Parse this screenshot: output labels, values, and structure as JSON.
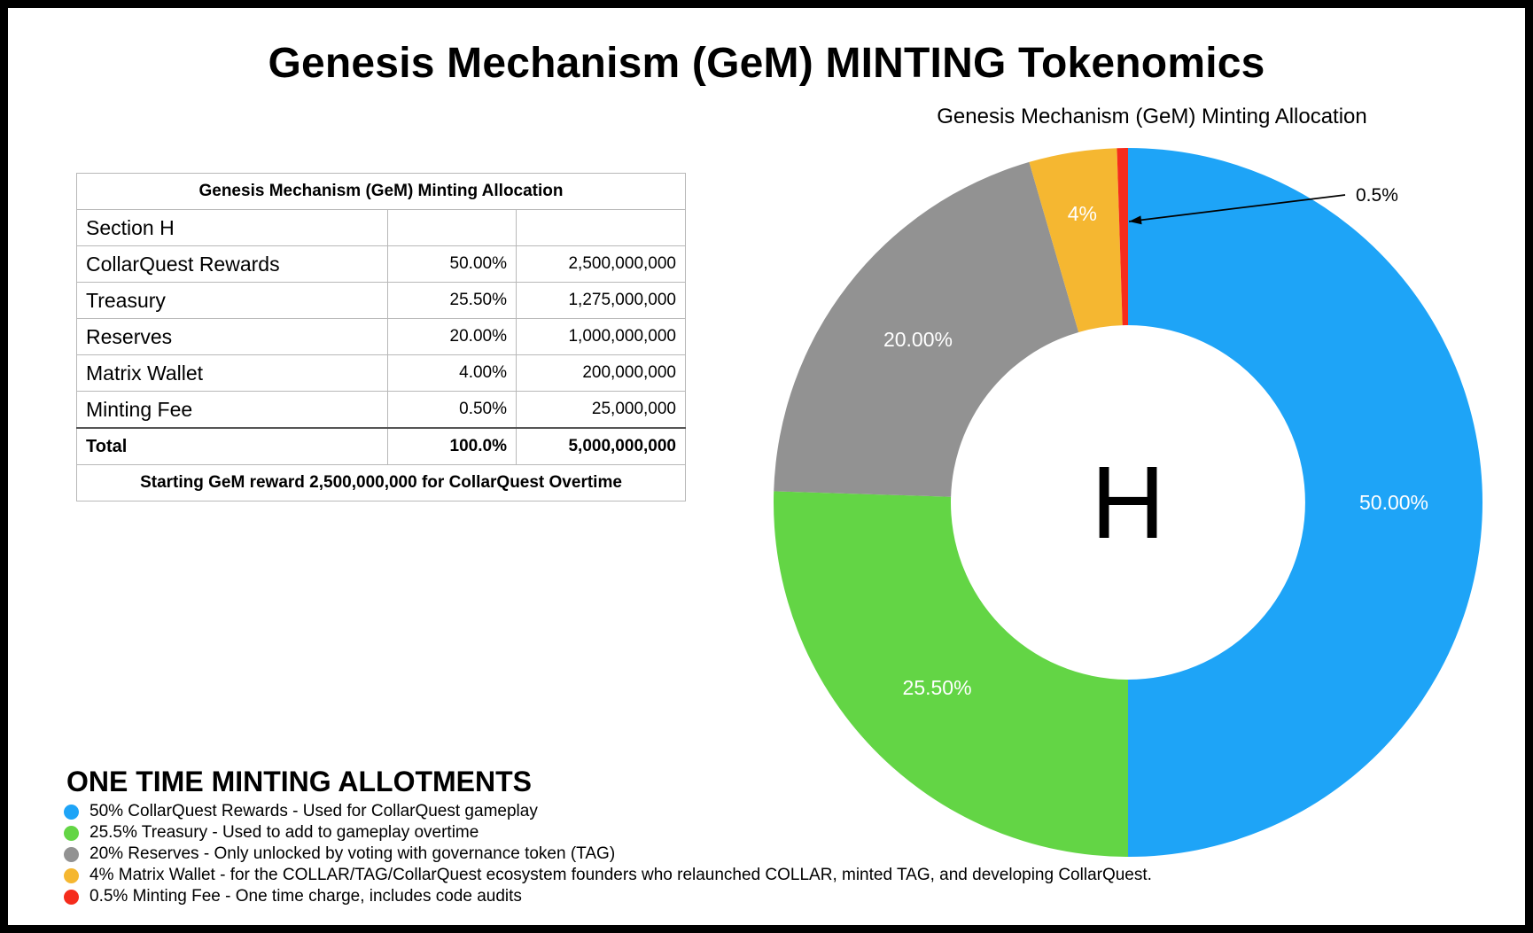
{
  "title": "Genesis Mechanism (GeM) MINTING Tokenomics",
  "table": {
    "caption": "Genesis Mechanism (GeM) Minting Allocation",
    "section_label": "Section H",
    "rows": [
      {
        "label": "CollarQuest Rewards",
        "percent": "50.00%",
        "amount": "2,500,000,000"
      },
      {
        "label": "Treasury",
        "percent": "25.50%",
        "amount": "1,275,000,000"
      },
      {
        "label": "Reserves",
        "percent": "20.00%",
        "amount": "1,000,000,000"
      },
      {
        "label": "Matrix Wallet",
        "percent": "4.00%",
        "amount": "200,000,000"
      },
      {
        "label": "Minting Fee",
        "percent": "0.50%",
        "amount": "25,000,000"
      }
    ],
    "total": {
      "label": "Total",
      "percent": "100.0%",
      "amount": "5,000,000,000"
    },
    "footer": "Starting GeM reward 2,500,000,000 for CollarQuest Overtime"
  },
  "allotments": {
    "title": "ONE TIME MINTING ALLOTMENTS",
    "items": [
      {
        "text": "50% CollarQuest Rewards - Used for CollarQuest gameplay",
        "color": "#1ea4f7"
      },
      {
        "text": "25.5% Treasury - Used to add to gameplay overtime",
        "color": "#63d545"
      },
      {
        "text": "20% Reserves - Only unlocked by voting with governance token (TAG)",
        "color": "#929292"
      },
      {
        "text": "4% Matrix Wallet - for the COLLAR/TAG/CollarQuest ecosystem founders who relaunched COLLAR, minted TAG, and developing CollarQuest.",
        "color": "#f5b731"
      },
      {
        "text": "0.5% Minting Fee - One time charge, includes code audits",
        "color": "#f52c1c"
      }
    ]
  },
  "chart_data": {
    "type": "pie",
    "title": "Genesis Mechanism (GeM) Minting Allocation",
    "center_label": "H",
    "slices": [
      {
        "name": "CollarQuest Rewards",
        "value": 50.0,
        "label": "50.00%",
        "color": "#1ea4f7"
      },
      {
        "name": "Treasury",
        "value": 25.5,
        "label": "25.50%",
        "color": "#63d545"
      },
      {
        "name": "Reserves",
        "value": 20.0,
        "label": "20.00%",
        "color": "#929292"
      },
      {
        "name": "Matrix Wallet",
        "value": 4.0,
        "label": "4%",
        "color": "#f5b731"
      },
      {
        "name": "Minting Fee",
        "value": 0.5,
        "label": "0.5%",
        "color": "#f52c1c"
      }
    ]
  }
}
